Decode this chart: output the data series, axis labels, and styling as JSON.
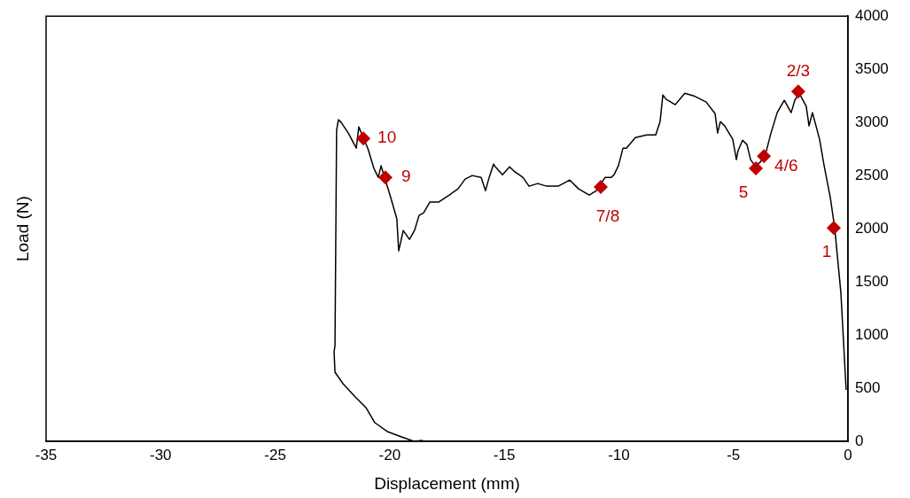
{
  "chart_data": {
    "type": "line",
    "xlabel": "Displacement (mm)",
    "ylabel": "Load (N)",
    "xlim": [
      -35,
      0
    ],
    "xticks": [
      -35,
      -30,
      -25,
      -20,
      -15,
      -10,
      -5,
      0
    ],
    "ylim": [
      0,
      4000
    ],
    "yticks": [
      0,
      500,
      1000,
      1500,
      2000,
      2500,
      3000,
      3500,
      4000
    ],
    "grid": false,
    "legend": false,
    "series": [
      {
        "type": "line",
        "color": "#000000",
        "marker": "none",
        "line_style": "solid",
        "x": [
          -0.08,
          -0.31,
          -0.58,
          -0.77,
          -1.04,
          -1.24,
          -1.55,
          -1.7,
          -1.82,
          -2.13,
          -2.32,
          -2.48,
          -2.78,
          -3.09,
          -3.36,
          -3.56,
          -3.83,
          -4.06,
          -4.25,
          -4.41,
          -4.6,
          -4.8,
          -4.87,
          -5.03,
          -5.38,
          -5.57,
          -5.69,
          -5.8,
          -6.19,
          -6.73,
          -7.12,
          -7.54,
          -7.93,
          -8.08,
          -8.2,
          -8.39,
          -8.78,
          -9.28,
          -9.67,
          -9.82,
          -10.02,
          -10.21,
          -10.33,
          -10.6,
          -10.98,
          -11.29,
          -11.76,
          -12.14,
          -12.65,
          -13.15,
          -13.54,
          -13.92,
          -14.19,
          -14.58,
          -14.77,
          -15.08,
          -15.43,
          -15.47,
          -15.66,
          -15.82,
          -16.01,
          -16.4,
          -16.71,
          -17.02,
          -17.4,
          -17.87,
          -18.25,
          -18.52,
          -18.72,
          -18.92,
          -19.14,
          -19.41,
          -19.61,
          -19.69,
          -19.99,
          -20.19,
          -20.38,
          -20.5,
          -20.69,
          -20.96,
          -21.35,
          -21.46,
          -21.81,
          -22.12,
          -22.24,
          -22.32,
          -22.39,
          -22.43,
          -22.39,
          -22.04,
          -21.54,
          -21.04,
          -20.65,
          -20.11,
          -19.49,
          -18.95,
          -18.56
        ],
        "values": [
          483,
          1400,
          2008,
          2292,
          2592,
          2842,
          3092,
          2967,
          3150,
          3275,
          3208,
          3092,
          3208,
          3092,
          2900,
          2733,
          2625,
          2592,
          2650,
          2792,
          2833,
          2733,
          2650,
          2842,
          2967,
          3008,
          2900,
          3083,
          3192,
          3250,
          3275,
          3167,
          3217,
          3258,
          3008,
          2883,
          2883,
          2858,
          2758,
          2758,
          2592,
          2508,
          2483,
          2483,
          2358,
          2317,
          2375,
          2458,
          2400,
          2400,
          2425,
          2400,
          2483,
          2542,
          2583,
          2508,
          2592,
          2608,
          2483,
          2358,
          2483,
          2500,
          2467,
          2375,
          2317,
          2250,
          2250,
          2150,
          2125,
          1983,
          1900,
          1983,
          1792,
          2092,
          2317,
          2458,
          2592,
          2483,
          2567,
          2758,
          2958,
          2758,
          2900,
          3000,
          3025,
          2925,
          900,
          842,
          650,
          542,
          425,
          317,
          175,
          92,
          42,
          0,
          8
        ]
      },
      {
        "type": "scatter",
        "color": "#c00000",
        "marker": "diamond",
        "x": [
          -0.62,
          -2.17,
          -3.67,
          -4.02,
          -10.79,
          -20.19,
          -21.15
        ],
        "values": [
          2008,
          3292,
          2683,
          2567,
          2392,
          2483,
          2850
        ]
      }
    ],
    "annotations": [
      {
        "text": "1",
        "x": -0.62,
        "y": 2008
      },
      {
        "text": "2/3",
        "x": -2.17,
        "y": 3292
      },
      {
        "text": "4/6",
        "x": -3.67,
        "y": 2683
      },
      {
        "text": "5",
        "x": -4.02,
        "y": 2567
      },
      {
        "text": "7/8",
        "x": -10.79,
        "y": 2392
      },
      {
        "text": "9",
        "x": -20.19,
        "y": 2483
      },
      {
        "text": "10",
        "x": -21.15,
        "y": 2850
      }
    ]
  }
}
